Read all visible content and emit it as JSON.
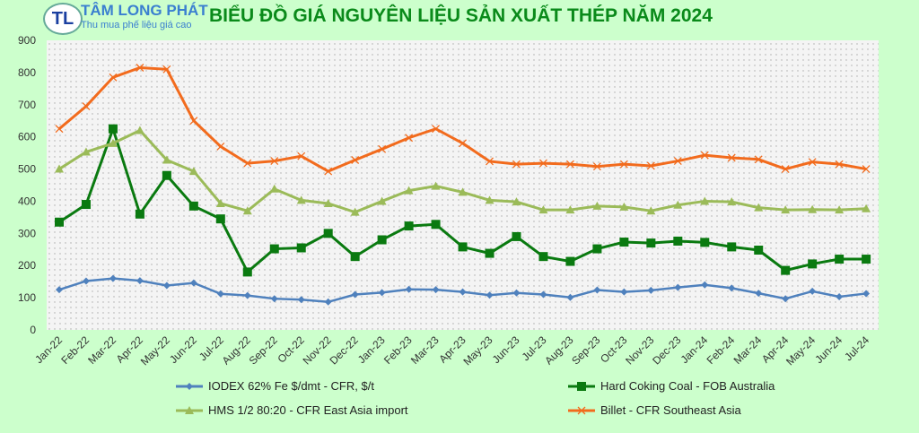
{
  "logo": {
    "mark": "TL",
    "name": "TÂM LONG PHÁT",
    "tagline": "Thu mua phế liệu giá cao"
  },
  "chart_data": {
    "type": "line",
    "title": "BIỂU ĐỒ GIÁ NGUYÊN LIỆU SẢN XUẤT THÉP NĂM 2024",
    "ylim": [
      0,
      900
    ],
    "yticks": [
      0,
      100,
      200,
      300,
      400,
      500,
      600,
      700,
      800,
      900
    ],
    "categories": [
      "Jan-22",
      "Feb-22",
      "Mar-22",
      "Apr-22",
      "May-22",
      "Jun-22",
      "Jul-22",
      "Aug-22",
      "Sep-22",
      "Oct-22",
      "Nov-22",
      "Dec-22",
      "Jan-23",
      "Feb-23",
      "Mar-23",
      "Apr-23",
      "May-23",
      "Jun-23",
      "Jul-23",
      "Aug-23",
      "Sep-23",
      "Oct-23",
      "Nov-23",
      "Dec-23",
      "Jan-24",
      "Feb-24",
      "Mar-24",
      "Apr-24",
      "May-24",
      "Jun-24",
      "Jul-24"
    ],
    "legend_position": "bottom",
    "series": [
      {
        "name": "IODEX 62% Fe $/dmt - CFR, $/t",
        "color": "#4f81bd",
        "marker": "diamond",
        "values": [
          125,
          152,
          160,
          153,
          138,
          146,
          112,
          107,
          97,
          94,
          87,
          110,
          116,
          126,
          125,
          118,
          108,
          115,
          110,
          101,
          124,
          118,
          123,
          132,
          140,
          130,
          114,
          97,
          120,
          103,
          113
        ]
      },
      {
        "name": "Hard Coking Coal - FOB Australia",
        "color": "#0a7a10",
        "marker": "square",
        "values": [
          335,
          390,
          625,
          360,
          480,
          385,
          345,
          180,
          252,
          255,
          300,
          228,
          280,
          323,
          328,
          258,
          238,
          290,
          228,
          213,
          252,
          273,
          270,
          276,
          272,
          258,
          248,
          185,
          205,
          220,
          220
        ]
      },
      {
        "name": "HMS 1/2 80:20 - CFR East Asia import",
        "color": "#9bbb59",
        "marker": "triangle",
        "values": [
          500,
          553,
          580,
          620,
          528,
          493,
          393,
          370,
          438,
          403,
          393,
          366,
          400,
          433,
          447,
          428,
          403,
          398,
          373,
          373,
          385,
          382,
          370,
          388,
          400,
          398,
          380,
          373,
          374,
          373,
          377
        ]
      },
      {
        "name": "Billet - CFR Southeast Asia",
        "color": "#f26b1d",
        "marker": "x",
        "values": [
          625,
          695,
          785,
          815,
          810,
          650,
          570,
          518,
          525,
          540,
          493,
          528,
          562,
          597,
          625,
          580,
          524,
          515,
          518,
          515,
          508,
          515,
          510,
          525,
          543,
          535,
          530,
          500,
          522,
          515,
          500
        ]
      }
    ]
  }
}
